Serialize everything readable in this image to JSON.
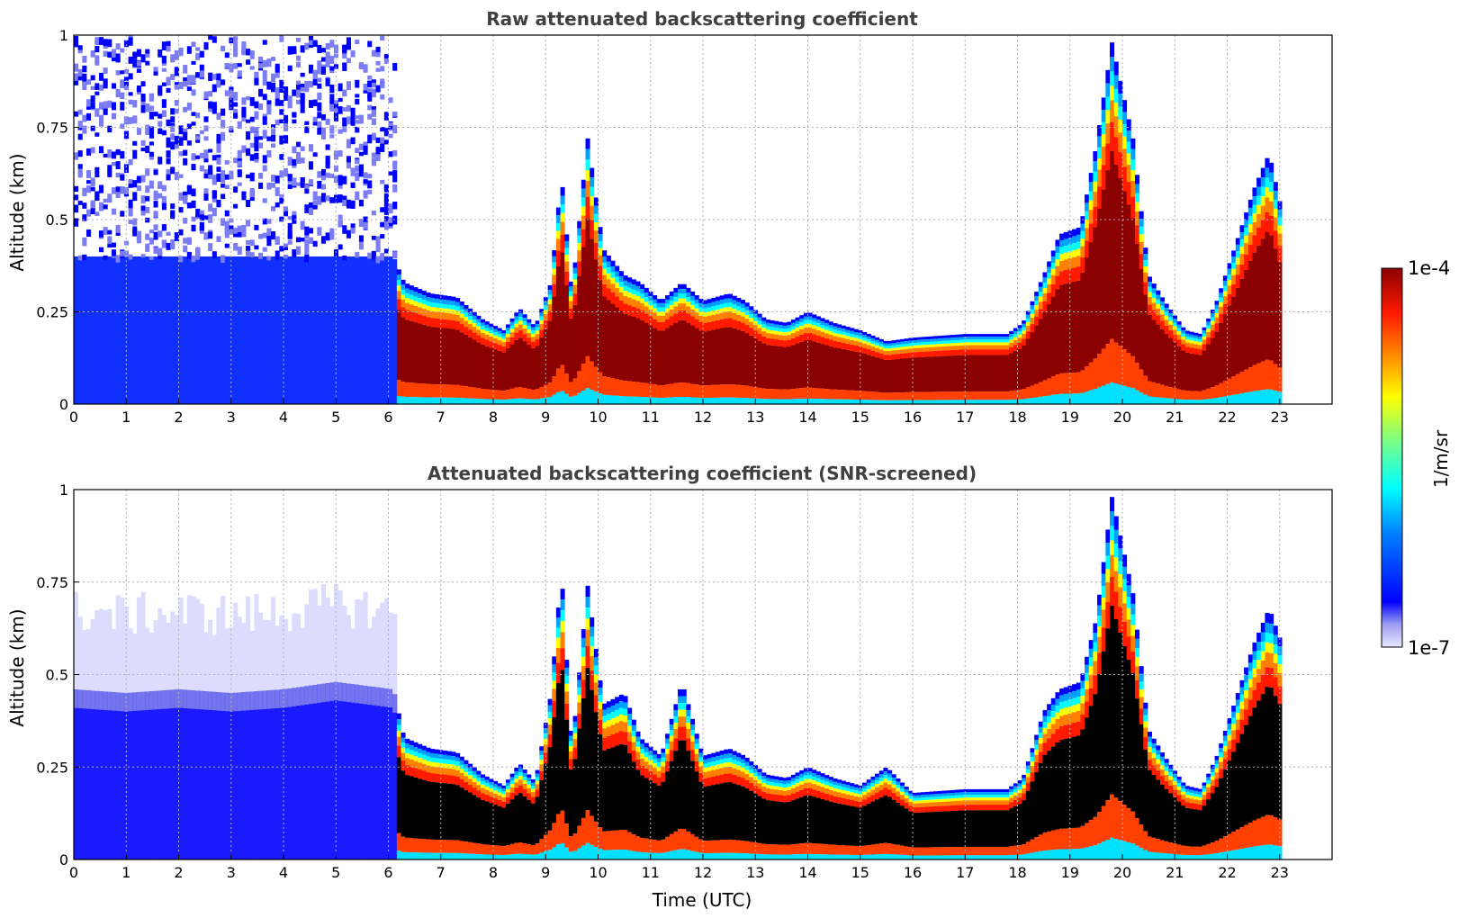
{
  "chart_data": [
    {
      "type": "heatmap",
      "title": "Raw attenuated backscattering coefficient",
      "xlabel": "",
      "ylabel": "Altitude (km)",
      "xlim": [
        0,
        24
      ],
      "ylim": [
        0,
        1
      ],
      "x_ticks": [
        "0",
        "1",
        "2",
        "3",
        "4",
        "5",
        "6",
        "7",
        "8",
        "9",
        "10",
        "11",
        "12",
        "13",
        "14",
        "15",
        "16",
        "17",
        "18",
        "19",
        "20",
        "21",
        "22",
        "23"
      ],
      "y_ticks": [
        "0",
        "0.25",
        "0.5",
        "0.75",
        "1"
      ],
      "grid": true,
      "screened": false,
      "layer_top_km": [
        [
          0,
          0.4
        ],
        [
          1,
          0.4
        ],
        [
          2,
          0.4
        ],
        [
          3,
          0.4
        ],
        [
          4,
          0.4
        ],
        [
          5,
          0.4
        ],
        [
          6.1,
          0.4
        ],
        [
          6.3,
          0.33
        ],
        [
          6.8,
          0.3
        ],
        [
          7.3,
          0.29
        ],
        [
          7.8,
          0.23
        ],
        [
          8.2,
          0.2
        ],
        [
          8.5,
          0.26
        ],
        [
          8.8,
          0.21
        ],
        [
          9.1,
          0.33
        ],
        [
          9.3,
          0.62
        ],
        [
          9.5,
          0.3
        ],
        [
          9.8,
          0.72
        ],
        [
          10.1,
          0.42
        ],
        [
          10.5,
          0.35
        ],
        [
          10.8,
          0.33
        ],
        [
          11.2,
          0.28
        ],
        [
          11.6,
          0.33
        ],
        [
          12.0,
          0.28
        ],
        [
          12.5,
          0.3
        ],
        [
          12.8,
          0.28
        ],
        [
          13.2,
          0.23
        ],
        [
          13.6,
          0.22
        ],
        [
          14.0,
          0.25
        ],
        [
          14.5,
          0.22
        ],
        [
          15.0,
          0.2
        ],
        [
          15.5,
          0.17
        ],
        [
          16.0,
          0.18
        ],
        [
          17.0,
          0.19
        ],
        [
          17.8,
          0.19
        ],
        [
          18.1,
          0.22
        ],
        [
          18.5,
          0.35
        ],
        [
          18.8,
          0.46
        ],
        [
          19.2,
          0.48
        ],
        [
          19.5,
          0.7
        ],
        [
          19.8,
          0.98
        ],
        [
          20.2,
          0.72
        ],
        [
          20.5,
          0.35
        ],
        [
          20.8,
          0.28
        ],
        [
          21.2,
          0.2
        ],
        [
          21.5,
          0.19
        ],
        [
          21.8,
          0.28
        ],
        [
          22.2,
          0.45
        ],
        [
          22.5,
          0.58
        ],
        [
          22.8,
          0.68
        ],
        [
          23.0,
          0.55
        ]
      ]
    },
    {
      "type": "heatmap",
      "title": "Attenuated backscattering coefficient (SNR-screened)",
      "xlabel": "Time (UTC)",
      "ylabel": "Altitude (km)",
      "xlim": [
        0,
        24
      ],
      "ylim": [
        0,
        1
      ],
      "x_ticks": [
        "0",
        "1",
        "2",
        "3",
        "4",
        "5",
        "6",
        "7",
        "8",
        "9",
        "10",
        "11",
        "12",
        "13",
        "14",
        "15",
        "16",
        "17",
        "18",
        "19",
        "20",
        "21",
        "22",
        "23"
      ],
      "y_ticks": [
        "0",
        "0.25",
        "0.5",
        "0.75",
        "1"
      ],
      "grid": true,
      "screened": true,
      "layer_top_km": [
        [
          0,
          0.46
        ],
        [
          1,
          0.45
        ],
        [
          2,
          0.46
        ],
        [
          3,
          0.45
        ],
        [
          4,
          0.46
        ],
        [
          5,
          0.48
        ],
        [
          6.1,
          0.46
        ],
        [
          6.3,
          0.33
        ],
        [
          6.8,
          0.3
        ],
        [
          7.3,
          0.29
        ],
        [
          7.8,
          0.23
        ],
        [
          8.2,
          0.2
        ],
        [
          8.5,
          0.26
        ],
        [
          8.8,
          0.21
        ],
        [
          9.1,
          0.45
        ],
        [
          9.3,
          0.78
        ],
        [
          9.5,
          0.3
        ],
        [
          9.8,
          0.74
        ],
        [
          10.1,
          0.42
        ],
        [
          10.5,
          0.45
        ],
        [
          10.8,
          0.33
        ],
        [
          11.2,
          0.28
        ],
        [
          11.6,
          0.48
        ],
        [
          12.0,
          0.28
        ],
        [
          12.5,
          0.3
        ],
        [
          12.8,
          0.28
        ],
        [
          13.2,
          0.23
        ],
        [
          13.6,
          0.22
        ],
        [
          14.0,
          0.25
        ],
        [
          14.5,
          0.22
        ],
        [
          15.0,
          0.2
        ],
        [
          15.5,
          0.25
        ],
        [
          16.0,
          0.18
        ],
        [
          17.0,
          0.19
        ],
        [
          17.8,
          0.19
        ],
        [
          18.1,
          0.22
        ],
        [
          18.5,
          0.4
        ],
        [
          18.8,
          0.46
        ],
        [
          19.2,
          0.48
        ],
        [
          19.5,
          0.65
        ],
        [
          19.8,
          0.98
        ],
        [
          20.2,
          0.72
        ],
        [
          20.5,
          0.35
        ],
        [
          20.8,
          0.28
        ],
        [
          21.2,
          0.2
        ],
        [
          21.5,
          0.19
        ],
        [
          21.8,
          0.28
        ],
        [
          22.2,
          0.45
        ],
        [
          22.5,
          0.58
        ],
        [
          22.8,
          0.68
        ],
        [
          23.0,
          0.6
        ]
      ]
    }
  ],
  "colorbar": {
    "label": "1/m/sr",
    "max_label": "1e-4",
    "min_label": "1e-7",
    "colors": [
      "#e8e8ff",
      "#b0b0f5",
      "#6f6ff0",
      "#0000ff",
      "#0040ff",
      "#0080ff",
      "#00bfff",
      "#00ffff",
      "#40ffbf",
      "#80ff80",
      "#bfff40",
      "#ffff00",
      "#ffbf00",
      "#ff8000",
      "#ff4000",
      "#e00000",
      "#8b0000"
    ]
  }
}
